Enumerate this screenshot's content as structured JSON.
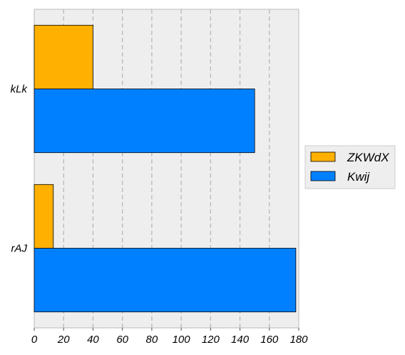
{
  "chart_data": {
    "type": "bar",
    "orientation": "horizontal",
    "categories": [
      "rAJ",
      "kLk"
    ],
    "series": [
      {
        "name": "Kwij",
        "values": [
          178,
          150
        ],
        "color": "#0080ff"
      },
      {
        "name": "ZKWdX",
        "values": [
          13,
          40
        ],
        "color": "#ffb000"
      }
    ],
    "x_ticks": [
      "0",
      "20",
      "40",
      "60",
      "80",
      "100",
      "120",
      "140",
      "160",
      "180"
    ],
    "xlim": [
      0,
      180
    ],
    "grid": true,
    "legend_position": "right",
    "legend": [
      "ZKWdX",
      "Kwij"
    ],
    "background_color": "#eeeeee"
  }
}
